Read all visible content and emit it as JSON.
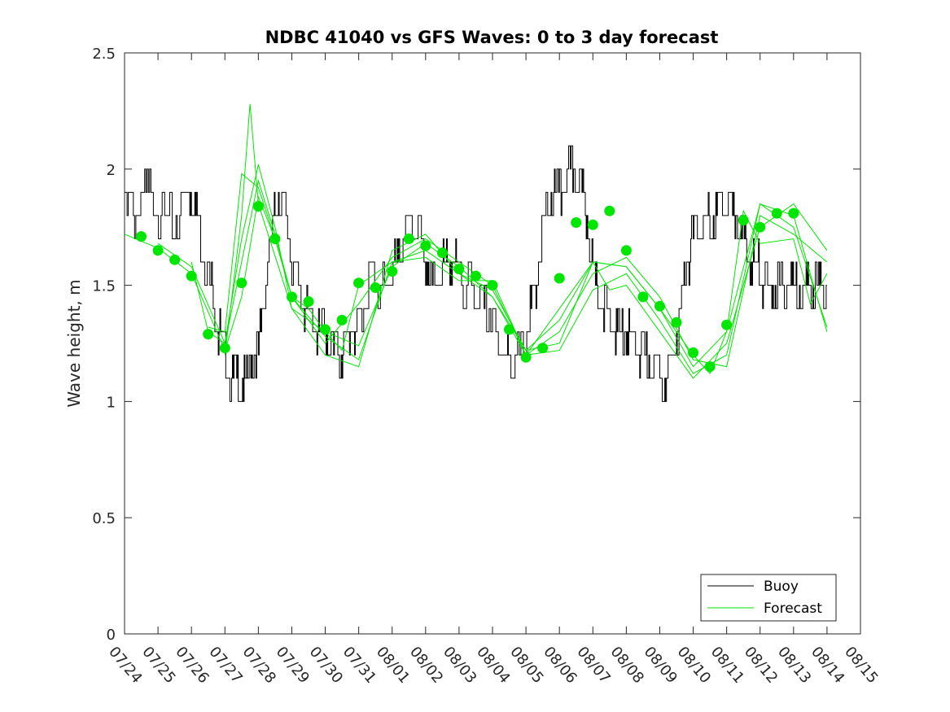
{
  "chart_data": {
    "type": "line",
    "title": "NDBC 41040 vs GFS Waves: 0 to 3 day forecast",
    "xlabel": "",
    "ylabel": "Wave height, m",
    "xlim": [
      "07/24",
      "08/15"
    ],
    "ylim": [
      0,
      2.5
    ],
    "x_ticks": [
      "07/24",
      "07/25",
      "07/26",
      "07/27",
      "07/28",
      "07/29",
      "07/30",
      "07/31",
      "08/01",
      "08/02",
      "08/03",
      "08/04",
      "08/05",
      "08/06",
      "08/07",
      "08/08",
      "08/09",
      "08/10",
      "08/11",
      "08/12",
      "08/13",
      "08/14",
      "08/15"
    ],
    "y_ticks": [
      "0",
      "0.5",
      "1",
      "1.5",
      "2",
      "2.5"
    ],
    "y_tick_values": [
      0,
      0.5,
      1,
      1.5,
      2,
      2.5
    ],
    "grid": false,
    "legend_position": "bottom-right",
    "colors": {
      "buoy": "#000000",
      "forecast": "#00e600",
      "axis": "#262626"
    },
    "series": [
      {
        "name": "Buoy",
        "day_offset": [
          0,
          0.3,
          0.6,
          0.9,
          1.2,
          1.5,
          1.8,
          2.0,
          2.2,
          2.4,
          2.6,
          2.8,
          3.0,
          3.2,
          3.4,
          3.6,
          3.8,
          4.0,
          4.2,
          4.4,
          4.6,
          4.8,
          5.0,
          5.2,
          5.4,
          5.6,
          5.8,
          6.0,
          6.2,
          6.4,
          6.6,
          6.8,
          7.0,
          7.2,
          7.4,
          7.6,
          7.8,
          8.0,
          8.2,
          8.4,
          8.6,
          8.8,
          9.0,
          9.2,
          9.4,
          9.6,
          9.8,
          10.0,
          10.2,
          10.4,
          10.6,
          10.8,
          11.0,
          11.2,
          11.4,
          11.6,
          11.8,
          12.0,
          12.2,
          12.4,
          12.6,
          12.8,
          13.0,
          13.2,
          13.4,
          13.6,
          13.8,
          14.0,
          14.2,
          14.4,
          14.6,
          14.8,
          15.0,
          15.2,
          15.4,
          15.6,
          15.8,
          16.0,
          16.2,
          16.4,
          16.6,
          16.8,
          17.0,
          17.2,
          17.4,
          17.6,
          17.8,
          18.0,
          18.2,
          18.4,
          18.6,
          18.8,
          19.0,
          19.2,
          19.4,
          19.6,
          19.8,
          20.0,
          20.2,
          20.4,
          20.6,
          20.8,
          21.0
        ],
        "values": [
          1.85,
          1.8,
          1.9,
          1.85,
          1.8,
          1.75,
          1.9,
          1.9,
          1.8,
          1.6,
          1.5,
          1.3,
          1.2,
          1.1,
          1.1,
          1.05,
          1.2,
          1.2,
          1.5,
          1.7,
          1.9,
          1.8,
          1.6,
          1.5,
          1.4,
          1.35,
          1.3,
          1.3,
          1.25,
          1.2,
          1.25,
          1.3,
          1.3,
          1.45,
          1.55,
          1.5,
          1.5,
          1.55,
          1.6,
          1.75,
          1.75,
          1.7,
          1.6,
          1.5,
          1.55,
          1.6,
          1.6,
          1.55,
          1.5,
          1.5,
          1.45,
          1.4,
          1.35,
          1.25,
          1.2,
          1.15,
          1.2,
          1.3,
          1.4,
          1.6,
          1.8,
          1.9,
          1.9,
          1.95,
          2.0,
          1.95,
          1.8,
          1.6,
          1.45,
          1.4,
          1.35,
          1.3,
          1.3,
          1.25,
          1.2,
          1.2,
          1.15,
          1.15,
          1.1,
          1.2,
          1.35,
          1.6,
          1.7,
          1.75,
          1.75,
          1.8,
          1.85,
          1.85,
          1.8,
          1.75,
          1.65,
          1.6,
          1.55,
          1.5,
          1.5,
          1.5,
          1.5,
          1.5,
          1.5,
          1.5,
          1.5,
          1.5,
          1.5
        ]
      },
      {
        "name": "Forecast",
        "markers": {
          "day_offset": [
            0.5,
            1,
            1.5,
            2,
            2.5,
            3,
            3.5,
            4,
            4.5,
            5,
            5.5,
            6,
            6.5,
            7,
            7.5,
            8,
            8.5,
            9,
            9.5,
            10,
            10.5,
            11,
            11.5,
            12,
            12.5,
            13,
            13.5,
            14,
            14.5,
            15,
            15.5,
            16,
            16.5,
            17,
            17.5,
            18,
            18.5,
            19,
            19.5,
            20
          ],
          "values": [
            1.71,
            1.65,
            1.61,
            1.54,
            1.29,
            1.23,
            1.51,
            1.84,
            1.7,
            1.45,
            1.43,
            1.31,
            1.35,
            1.51,
            1.49,
            1.56,
            1.7,
            1.67,
            1.64,
            1.57,
            1.54,
            1.5,
            1.31,
            1.19,
            1.23,
            1.53,
            1.77,
            1.76,
            1.82,
            1.65,
            1.45,
            1.41,
            1.34,
            1.21,
            1.15,
            1.33,
            1.78,
            1.75,
            1.81,
            1.81
          ]
        },
        "runs": [
          {
            "day_offset": [
              0,
              1,
              2,
              3,
              3.5,
              4,
              4.5,
              5,
              5.5,
              6,
              6.5,
              7,
              8,
              9,
              10,
              11,
              12,
              13,
              14,
              15,
              16,
              17,
              17.5,
              18,
              18.5,
              19,
              20,
              20.5,
              21
            ],
            "values": [
              1.72,
              1.66,
              1.55,
              1.22,
              1.45,
              1.88,
              1.7,
              1.45,
              1.4,
              1.3,
              1.22,
              1.5,
              1.6,
              1.65,
              1.55,
              1.45,
              1.22,
              1.35,
              1.6,
              1.58,
              1.4,
              1.2,
              1.12,
              1.3,
              1.82,
              1.68,
              1.7,
              1.42,
              1.55
            ]
          },
          {
            "day_offset": [
              1,
              2,
              3,
              3.5,
              4,
              4.5,
              5,
              6,
              7,
              8,
              9,
              10,
              11,
              12,
              13,
              14,
              15,
              16,
              17,
              18,
              19,
              20,
              21
            ],
            "values": [
              1.68,
              1.58,
              1.25,
              1.6,
              1.95,
              1.72,
              1.45,
              1.25,
              1.42,
              1.62,
              1.7,
              1.6,
              1.5,
              1.2,
              1.3,
              1.55,
              1.62,
              1.45,
              1.18,
              1.15,
              1.8,
              1.72,
              1.6
            ]
          },
          {
            "day_offset": [
              2,
              2.5,
              3,
              3.5,
              4,
              4.5,
              5,
              6,
              7,
              8,
              9,
              10,
              11,
              12,
              13,
              14,
              15,
              16,
              17,
              18,
              19,
              20,
              21
            ],
            "values": [
              1.6,
              1.3,
              1.25,
              1.7,
              2.02,
              1.75,
              1.4,
              1.2,
              1.15,
              1.65,
              1.72,
              1.55,
              1.48,
              1.22,
              1.25,
              1.6,
              1.58,
              1.4,
              1.15,
              1.3,
              1.85,
              1.75,
              1.32
            ]
          },
          {
            "day_offset": [
              2.5,
              3,
              3.5,
              4,
              4.5,
              5,
              6,
              7,
              8,
              9,
              10,
              11,
              12,
              13,
              14,
              15,
              16,
              17,
              18,
              19,
              20,
              21
            ],
            "values": [
              1.32,
              1.3,
              1.98,
              1.92,
              1.7,
              1.45,
              1.28,
              1.18,
              1.6,
              1.62,
              1.52,
              1.52,
              1.2,
              1.22,
              1.48,
              1.55,
              1.35,
              1.12,
              1.2,
              1.85,
              1.8,
              1.3
            ]
          },
          {
            "day_offset": [
              3,
              3.5,
              3.75,
              4,
              5,
              6,
              7,
              8,
              9,
              10,
              11,
              12,
              13,
              14,
              14.5,
              15,
              16,
              17,
              18,
              19,
              20,
              21
            ],
            "values": [
              1.2,
              1.8,
              2.28,
              1.85,
              1.4,
              1.3,
              1.24,
              1.58,
              1.68,
              1.58,
              1.45,
              1.2,
              1.4,
              1.6,
              1.48,
              1.5,
              1.3,
              1.1,
              1.25,
              1.75,
              1.85,
              1.65
            ]
          }
        ]
      }
    ]
  }
}
